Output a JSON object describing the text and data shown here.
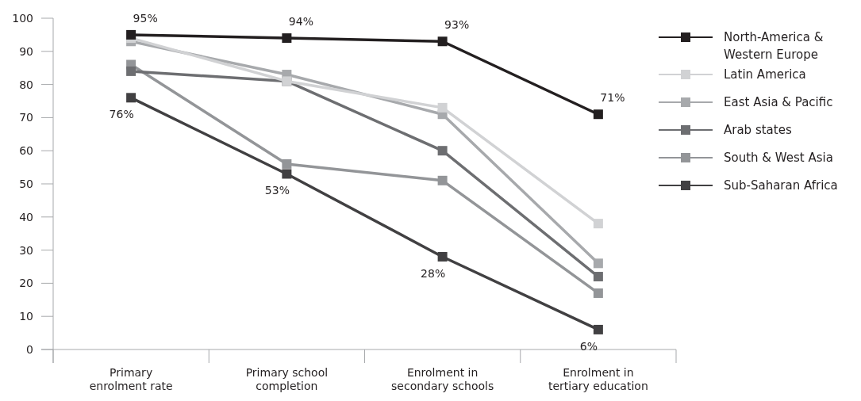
{
  "chart_data": {
    "type": "line",
    "categories": [
      "Primary enrolment rate",
      "Primary school completion",
      "Enrolment in secondary schools",
      "Enrolment in tertiary education"
    ],
    "ylim": [
      0,
      100
    ],
    "yticks": [
      0,
      10,
      20,
      30,
      40,
      50,
      60,
      70,
      80,
      90,
      100
    ],
    "grid": false,
    "legend": "right",
    "marker": "square",
    "line_style": "solid",
    "series": [
      {
        "name": "North-America & Western Europe",
        "color": "#231f20",
        "values": [
          95,
          94,
          93,
          71
        ],
        "value_labels": [
          "95%",
          "94%",
          "93%",
          "71%"
        ]
      },
      {
        "name": "Latin America",
        "color": "#d1d2d4",
        "values": [
          94,
          81,
          73,
          38
        ]
      },
      {
        "name": "East Asia & Pacific",
        "color": "#a7a9ac",
        "values": [
          93,
          83,
          71,
          26
        ]
      },
      {
        "name": "Arab states",
        "color": "#6d6e71",
        "values": [
          84,
          81,
          60,
          22
        ]
      },
      {
        "name": "South & West Asia",
        "color": "#939598",
        "values": [
          86,
          56,
          51,
          17
        ]
      },
      {
        "name": "Sub-Saharan Africa",
        "color": "#414042",
        "values": [
          76,
          53,
          28,
          6
        ],
        "value_labels": [
          "76%",
          "53%",
          "28%",
          "6%"
        ]
      }
    ]
  }
}
